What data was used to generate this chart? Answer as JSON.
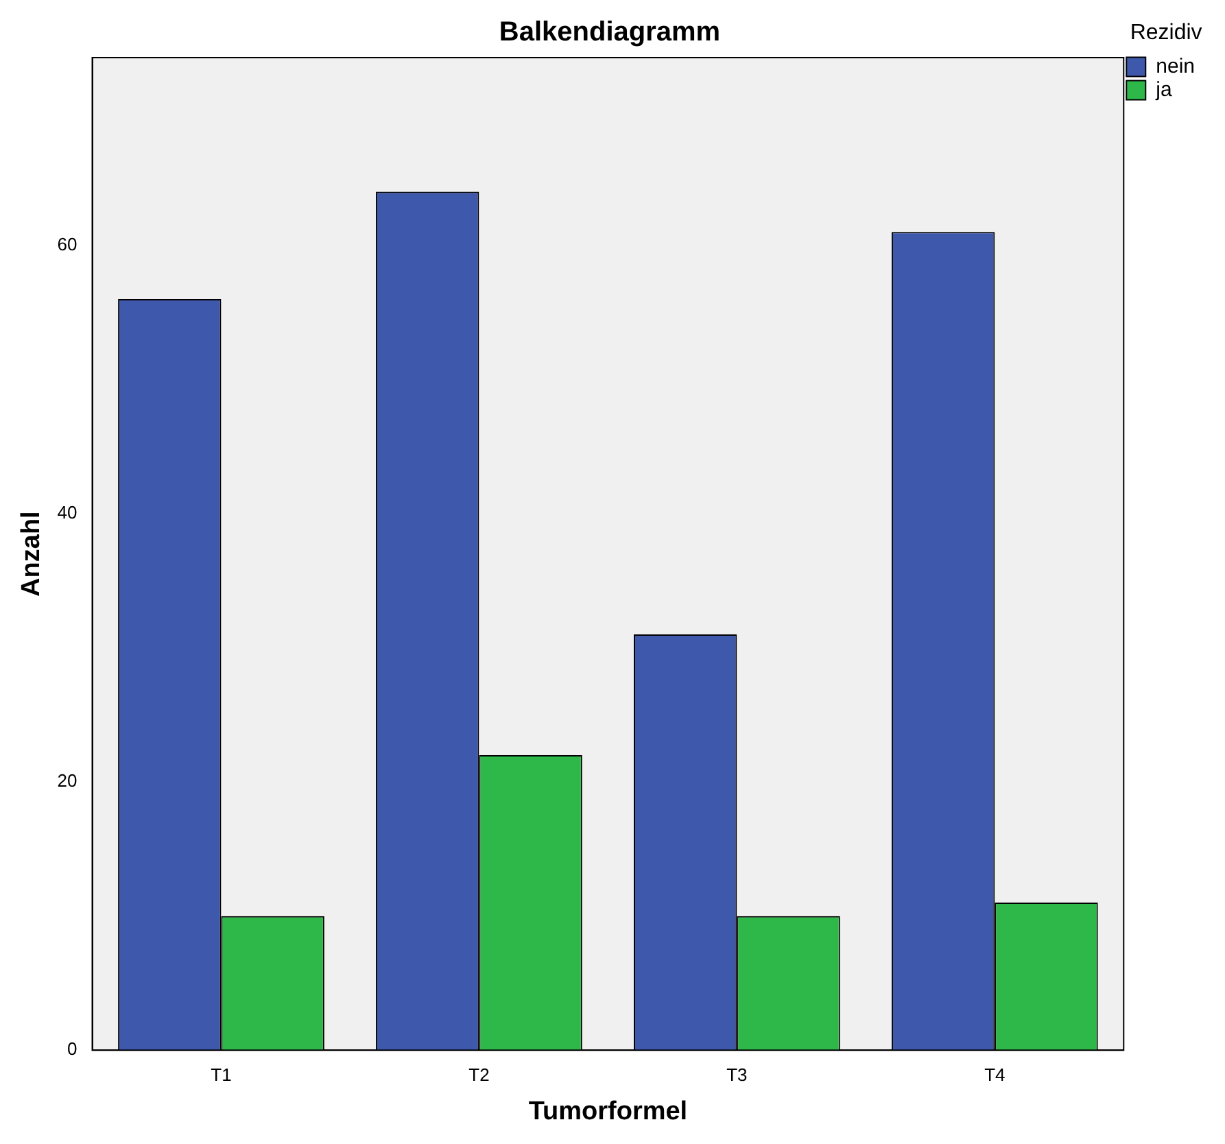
{
  "chart_data": {
    "type": "bar",
    "title": "Balkendiagramm",
    "xlabel": "Tumorformel",
    "ylabel": "Anzahl",
    "legend_title": "Rezidiv",
    "categories": [
      "T1",
      "T2",
      "T3",
      "T4"
    ],
    "series": [
      {
        "name": "nein",
        "color": "#3e58ac",
        "values": [
          56,
          64,
          31,
          61
        ]
      },
      {
        "name": "ja",
        "color": "#2eb84a",
        "values": [
          10,
          22,
          10,
          11
        ]
      }
    ],
    "ylim": [
      0,
      74
    ],
    "yticks": [
      0,
      20,
      40,
      60
    ],
    "grid": false,
    "legend": "top right"
  }
}
